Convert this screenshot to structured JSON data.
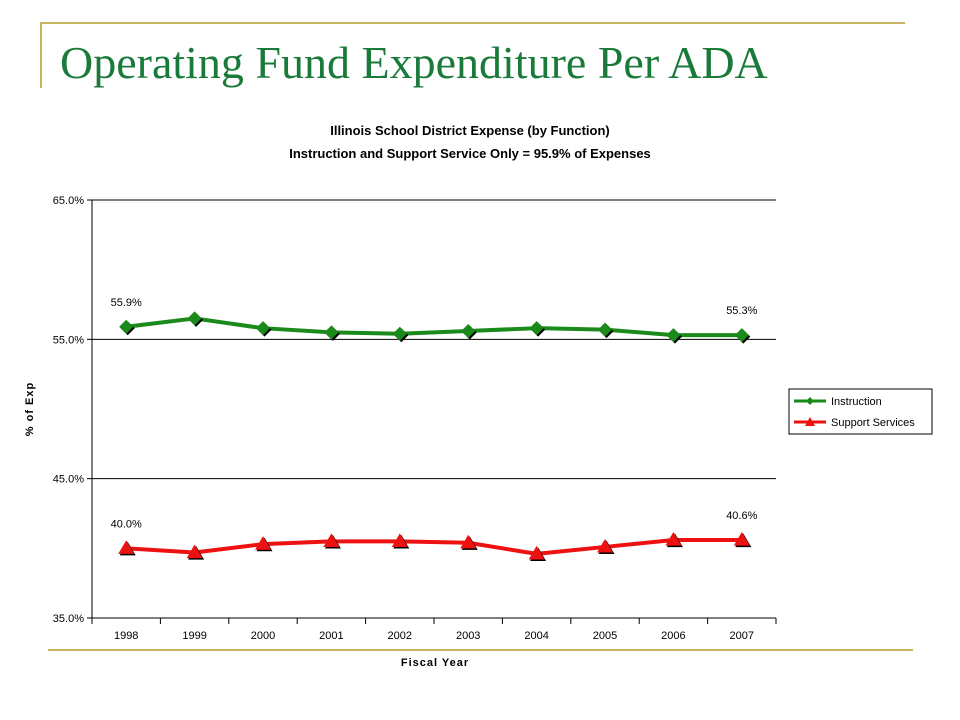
{
  "slide": {
    "title": "Operating Fund Expenditure Per ADA"
  },
  "colors": {
    "title": "#1a7a3a",
    "decoration": "#c7b463",
    "instruction": "#1a8a1a",
    "support": "#ee1111"
  },
  "chart_data": {
    "type": "line",
    "title": "Illinois School District Expense (by Function)",
    "subtitle": "Instruction and Support Service Only = 95.9% of Expenses",
    "xlabel": "Fiscal Year",
    "ylabel": "% of Exp",
    "categories": [
      "1998",
      "1999",
      "2000",
      "2001",
      "2002",
      "2003",
      "2004",
      "2005",
      "2006",
      "2007"
    ],
    "ylim": [
      35,
      65
    ],
    "yticks": [
      35,
      45,
      55,
      65
    ],
    "ytick_labels": [
      "35.0%",
      "45.0%",
      "55.0%",
      "65.0%"
    ],
    "grid": "horizontal",
    "legend_position": "right",
    "series": [
      {
        "name": "Instruction",
        "values": [
          55.9,
          56.5,
          55.8,
          55.5,
          55.4,
          55.6,
          55.8,
          55.7,
          55.3,
          55.3
        ],
        "color": "#1a8a1a",
        "marker": "diamond",
        "labels": [
          {
            "index": 0,
            "text": "55.9%"
          },
          {
            "index": 9,
            "text": "55.3%"
          }
        ]
      },
      {
        "name": "Support Services",
        "values": [
          40.0,
          39.7,
          40.3,
          40.5,
          40.5,
          40.4,
          39.6,
          40.1,
          40.6,
          40.6
        ],
        "color": "#ee1111",
        "marker": "triangle",
        "labels": [
          {
            "index": 0,
            "text": "40.0%"
          },
          {
            "index": 9,
            "text": "40.6%"
          }
        ]
      }
    ]
  }
}
